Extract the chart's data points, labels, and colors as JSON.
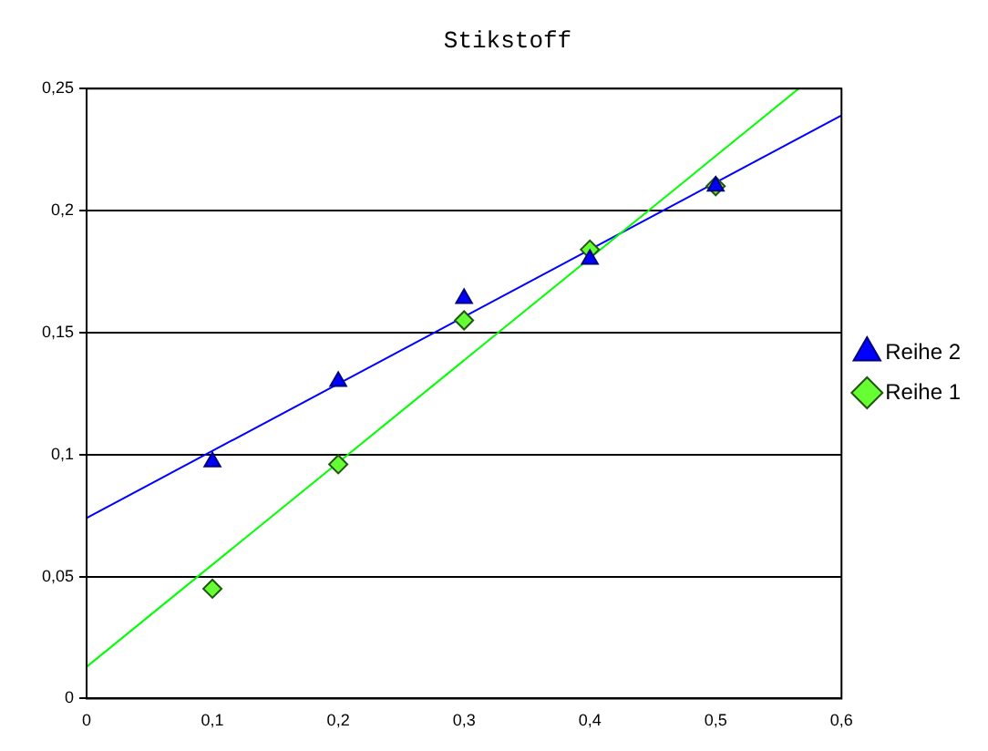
{
  "chart_data": {
    "type": "scatter",
    "title": "Stikstoff",
    "series": [
      {
        "name": "Reihe 1",
        "color": "#66ff33",
        "marker": "diamond",
        "x": [
          0.1,
          0.2,
          0.3,
          0.4,
          0.5
        ],
        "values": [
          0.045,
          0.096,
          0.155,
          0.184,
          0.21
        ]
      },
      {
        "name": "Reihe 2",
        "color": "#0000ff",
        "marker": "triangle",
        "x": [
          0.1,
          0.2,
          0.3,
          0.4,
          0.5
        ],
        "values": [
          0.097,
          0.13,
          0.164,
          0.18,
          0.21
        ]
      },
      {
        "type": "line",
        "color": "#00ff00",
        "marker": "none",
        "x": [
          0,
          0.566
        ],
        "values": [
          0.013,
          0.25
        ]
      },
      {
        "type": "line",
        "color": "#0000ff",
        "marker": "none",
        "x": [
          0,
          0.6
        ],
        "values": [
          0.074,
          0.239
        ]
      }
    ],
    "xlim": [
      0,
      0.6
    ],
    "xticks": [
      0,
      {
        "value": 0.1,
        "label": "0,1"
      },
      {
        "value": 0.2,
        "label": "0,2"
      },
      {
        "value": 0.3,
        "label": "0,3"
      },
      {
        "value": 0.4,
        "label": "0,4"
      },
      {
        "value": 0.5,
        "label": "0,5"
      },
      {
        "value": 0.6,
        "label": "0,6"
      }
    ],
    "ylim": [
      0,
      0.25
    ],
    "yticks": [
      0,
      {
        "value": 0.05,
        "label": "0,05"
      },
      {
        "value": 0.1,
        "label": "0,1"
      },
      {
        "value": 0.15,
        "label": "0,15"
      },
      {
        "value": 0.2,
        "label": "0,2"
      },
      {
        "value": 0.25,
        "label": "0,25"
      }
    ],
    "grid": "y",
    "legend": "right"
  }
}
